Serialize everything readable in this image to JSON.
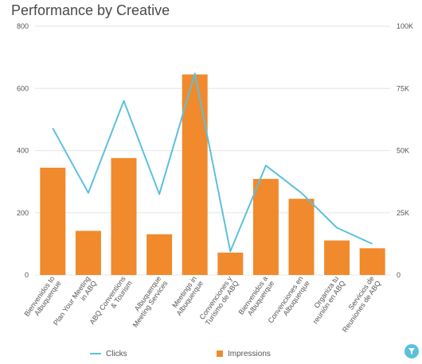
{
  "header": {
    "title": "Performance by Creative"
  },
  "colors": {
    "clicks": "#5bc0de",
    "impressions": "#f08a2c",
    "grid": "#e6e6e6",
    "text": "#555555"
  },
  "chart_data": {
    "type": "bar",
    "title": "Performance by Creative",
    "categories": [
      [
        "Bienvenidos to",
        "Albuquerque"
      ],
      [
        "Plan Your Meeting",
        "in ABQ"
      ],
      [
        "ABQ Conventions",
        "& Tourism"
      ],
      [
        "Albuquerque",
        "Meeting Services"
      ],
      [
        "Meetings in",
        "Albuquerque"
      ],
      [
        "Convenciones y",
        "Turismo de ABQ"
      ],
      [
        "Bienvenidos a",
        "Albuquerque"
      ],
      [
        "Convenciones en",
        "Albuquerque"
      ],
      [
        "Organiza tu",
        "reunión en ABQ"
      ],
      [
        "Servicios de",
        "Reuniones de ABQ"
      ]
    ],
    "series": [
      {
        "name": "Impressions",
        "type": "bar",
        "axis": "left",
        "values": [
          345,
          142,
          376,
          131,
          645,
          72,
          309,
          245,
          111,
          86
        ]
      },
      {
        "name": "Clicks",
        "type": "line",
        "axis": "right",
        "values": [
          59000,
          33000,
          70000,
          32500,
          81000,
          9500,
          44000,
          33000,
          19000,
          12500
        ]
      }
    ],
    "y_left": {
      "ylim": [
        0,
        800
      ],
      "ticks": [
        "0",
        "200",
        "400",
        "600",
        "800"
      ]
    },
    "y_right": {
      "ylim": [
        0,
        100000
      ],
      "ticks": [
        "0",
        "25K",
        "50K",
        "75K",
        "100K"
      ]
    },
    "grid": true,
    "legend_position": "bottom"
  },
  "legend": [
    {
      "label": "Clicks"
    },
    {
      "label": "Impressions"
    }
  ]
}
